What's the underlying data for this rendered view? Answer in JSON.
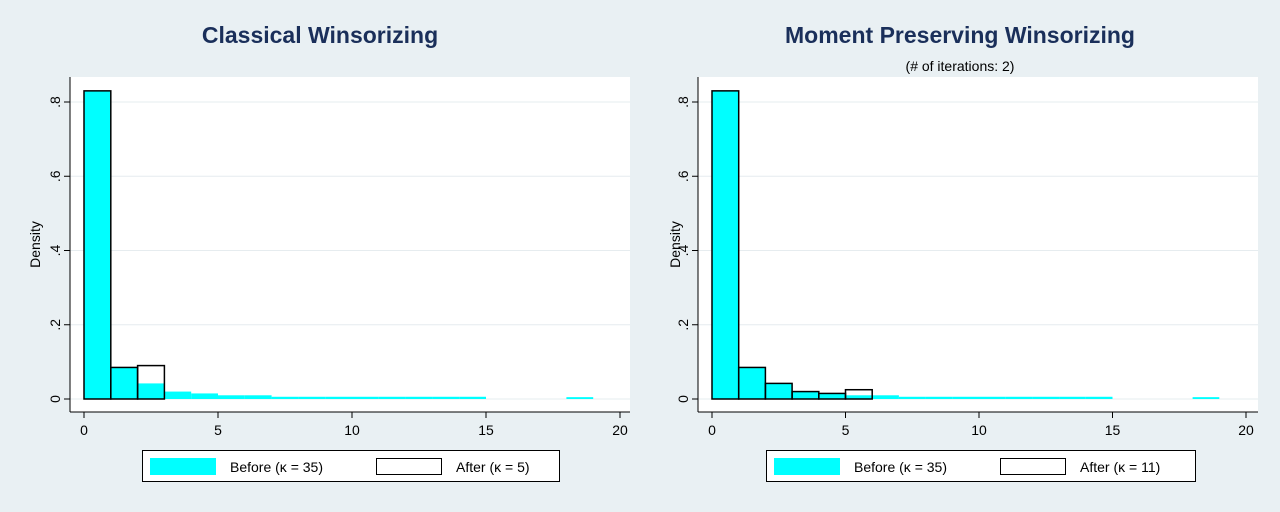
{
  "colors": {
    "background": "#e9f0f3",
    "title": "#1a2f5a",
    "before_fill": "#00ffff",
    "after_fill": "#ffffff",
    "grid": "#e6ecef"
  },
  "chart_data": [
    {
      "type": "histogram",
      "title": "Classical Winsorizing",
      "subtitle": "",
      "xlabel": "",
      "ylabel": "Density",
      "xlim": [
        0,
        20
      ],
      "ylim": [
        0,
        0.85
      ],
      "xticks": [
        0,
        5,
        10,
        15,
        20
      ],
      "yticks": [
        0,
        0.2,
        0.4,
        0.6,
        0.8
      ],
      "ytick_labels": [
        "0",
        ".2",
        ".4",
        ".6",
        ".8"
      ],
      "grid": true,
      "legend_position": "bottom",
      "series": [
        {
          "name": "Before (κ = 35)",
          "bins": [
            [
              0,
              1,
              0.83
            ],
            [
              1,
              2,
              0.085
            ],
            [
              2,
              3,
              0.042
            ],
            [
              3,
              4,
              0.02
            ],
            [
              4,
              5,
              0.015
            ],
            [
              5,
              6,
              0.01
            ],
            [
              6,
              7,
              0.01
            ],
            [
              7,
              8,
              0.006
            ],
            [
              8,
              9,
              0.006
            ],
            [
              9,
              10,
              0.006
            ],
            [
              10,
              11,
              0.006
            ],
            [
              11,
              12,
              0.006
            ],
            [
              12,
              13,
              0.006
            ],
            [
              13,
              14,
              0.006
            ],
            [
              14,
              15,
              0.006
            ],
            [
              18,
              19,
              0.005
            ]
          ]
        },
        {
          "name": "After (κ = 5)",
          "bins": [
            [
              0,
              1,
              0.83
            ],
            [
              1,
              2,
              0.085
            ],
            [
              2,
              3,
              0.09
            ]
          ]
        }
      ]
    },
    {
      "type": "histogram",
      "title": "Moment Preserving Winsorizing",
      "subtitle": "(# of iterations: 2)",
      "xlabel": "",
      "ylabel": "Density",
      "xlim": [
        0,
        20
      ],
      "ylim": [
        0,
        0.85
      ],
      "xticks": [
        0,
        5,
        10,
        15,
        20
      ],
      "yticks": [
        0,
        0.2,
        0.4,
        0.6,
        0.8
      ],
      "ytick_labels": [
        "0",
        ".2",
        ".4",
        ".6",
        ".8"
      ],
      "grid": true,
      "legend_position": "bottom",
      "series": [
        {
          "name": "Before (κ = 35)",
          "bins": [
            [
              0,
              1,
              0.83
            ],
            [
              1,
              2,
              0.085
            ],
            [
              2,
              3,
              0.042
            ],
            [
              3,
              4,
              0.02
            ],
            [
              4,
              5,
              0.015
            ],
            [
              5,
              6,
              0.01
            ],
            [
              6,
              7,
              0.01
            ],
            [
              7,
              8,
              0.006
            ],
            [
              8,
              9,
              0.006
            ],
            [
              9,
              10,
              0.006
            ],
            [
              10,
              11,
              0.006
            ],
            [
              11,
              12,
              0.006
            ],
            [
              12,
              13,
              0.006
            ],
            [
              13,
              14,
              0.006
            ],
            [
              14,
              15,
              0.006
            ],
            [
              18,
              19,
              0.005
            ]
          ]
        },
        {
          "name": "After (κ = 11)",
          "bins": [
            [
              0,
              1,
              0.83
            ],
            [
              1,
              2,
              0.085
            ],
            [
              2,
              3,
              0.042
            ],
            [
              3,
              4,
              0.02
            ],
            [
              4,
              5,
              0.015
            ],
            [
              5,
              6,
              0.025
            ]
          ]
        }
      ]
    }
  ]
}
